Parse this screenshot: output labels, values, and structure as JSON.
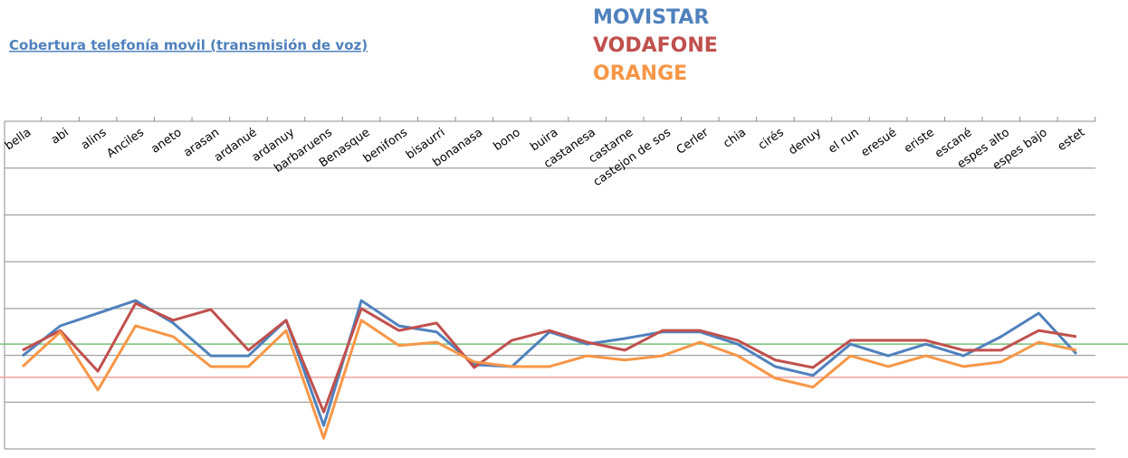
{
  "chart_data": {
    "type": "line",
    "title": "Cobertura telefonía movil (transmisión de voz)",
    "categories": [
      "bella",
      "abi",
      "alins",
      "Anciles",
      "aneto",
      "arasan",
      "ardanué",
      "ardanuy",
      "barbaruens",
      "Benasque",
      "benifons",
      "bisaurri",
      "bonanasa",
      "bono",
      "buira",
      "castanesa",
      "castarne",
      "castejon de sos",
      "Cerler",
      "chia",
      "cirés",
      "denuy",
      "el run",
      "eresué",
      "eriste",
      "escané",
      "espes alto",
      "espes bajo",
      "estet"
    ],
    "series": [
      {
        "name": "MOVISTAR",
        "color": "#4f81bd",
        "values": [
          1.99,
          2.63,
          2.9,
          3.17,
          2.69,
          1.99,
          1.99,
          2.75,
          0.5,
          3.17,
          2.63,
          2.5,
          1.8,
          1.76,
          2.5,
          2.24,
          2.36,
          2.5,
          2.5,
          2.24,
          1.76,
          1.57,
          2.24,
          1.99,
          2.24,
          1.99,
          2.4,
          2.9,
          2.03
        ]
      },
      {
        "name": "VODAFONE",
        "color": "#c0504d",
        "values": [
          2.11,
          2.53,
          1.66,
          3.11,
          2.75,
          2.98,
          2.11,
          2.75,
          0.79,
          3.0,
          2.53,
          2.69,
          1.74,
          2.32,
          2.53,
          2.28,
          2.11,
          2.53,
          2.53,
          2.32,
          1.9,
          1.74,
          2.32,
          2.32,
          2.32,
          2.11,
          2.11,
          2.53,
          2.4
        ]
      },
      {
        "name": "ORANGE",
        "color": "#f79646",
        "values": [
          1.76,
          2.5,
          1.26,
          2.63,
          2.4,
          1.76,
          1.76,
          2.53,
          0.23,
          2.75,
          2.21,
          2.28,
          1.86,
          1.76,
          1.76,
          1.99,
          1.9,
          1.99,
          2.28,
          1.99,
          1.51,
          1.32,
          1.99,
          1.76,
          1.99,
          1.76,
          1.86,
          2.28,
          2.11
        ]
      }
    ],
    "reference_lines": [
      {
        "value": 2.24,
        "color": "#77c077"
      },
      {
        "value": 1.53,
        "color": "#f0a0a0"
      }
    ],
    "ylim": [
      0,
      7
    ],
    "yticks": [
      0,
      1,
      2,
      3,
      4,
      5,
      6,
      7
    ],
    "grid": true
  }
}
